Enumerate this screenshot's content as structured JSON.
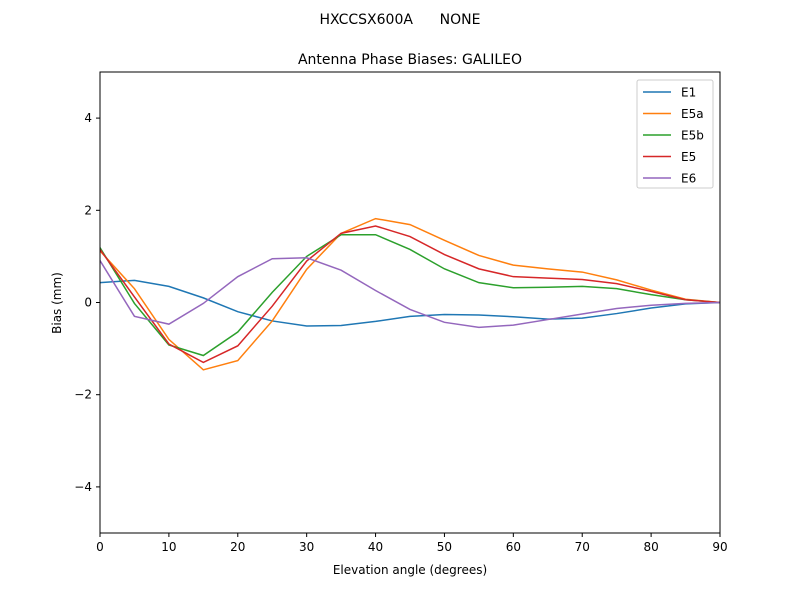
{
  "chart_data": {
    "type": "line",
    "suptitle": "HXCCSX600A      NONE",
    "title": "Antenna Phase Biases: GALILEO",
    "xlabel": "Elevation angle (degrees)",
    "ylabel": "Bias (mm)",
    "xlim": [
      0,
      90
    ],
    "ylim": [
      -5,
      5
    ],
    "xticks": [
      0,
      10,
      20,
      30,
      40,
      50,
      60,
      70,
      80,
      90
    ],
    "yticks": [
      -4,
      -2,
      0,
      2,
      4
    ],
    "ytick_labels": [
      "−4",
      "−2",
      "0",
      "2",
      "4"
    ],
    "grid": false,
    "legend_placement": "top-right",
    "x": [
      0,
      5,
      10,
      15,
      20,
      25,
      30,
      35,
      40,
      45,
      50,
      55,
      60,
      65,
      70,
      75,
      80,
      85,
      90
    ],
    "series": [
      {
        "name": "E1",
        "color": "#1f77b4",
        "values": [
          0.43,
          0.48,
          0.35,
          0.1,
          -0.2,
          -0.4,
          -0.51,
          -0.5,
          -0.41,
          -0.3,
          -0.26,
          -0.27,
          -0.31,
          -0.36,
          -0.34,
          -0.24,
          -0.12,
          -0.03,
          0
        ]
      },
      {
        "name": "E5a",
        "color": "#ff7f0e",
        "values": [
          1.12,
          0.3,
          -0.8,
          -1.46,
          -1.26,
          -0.4,
          0.72,
          1.5,
          1.82,
          1.69,
          1.35,
          1.02,
          0.81,
          0.73,
          0.66,
          0.49,
          0.27,
          0.07,
          0
        ]
      },
      {
        "name": "E5b",
        "color": "#2ca02c",
        "values": [
          1.19,
          -0.02,
          -0.92,
          -1.15,
          -0.64,
          0.22,
          1.0,
          1.47,
          1.47,
          1.15,
          0.73,
          0.43,
          0.32,
          0.33,
          0.35,
          0.3,
          0.17,
          0.06,
          0
        ]
      },
      {
        "name": "E5",
        "color": "#d62728",
        "values": [
          1.15,
          0.12,
          -0.9,
          -1.3,
          -0.94,
          -0.08,
          0.9,
          1.5,
          1.66,
          1.43,
          1.04,
          0.73,
          0.56,
          0.53,
          0.5,
          0.41,
          0.24,
          0.06,
          0
        ]
      },
      {
        "name": "E6",
        "color": "#9467bd",
        "values": [
          0.91,
          -0.3,
          -0.47,
          -0.02,
          0.56,
          0.95,
          0.97,
          0.7,
          0.26,
          -0.15,
          -0.43,
          -0.54,
          -0.49,
          -0.37,
          -0.25,
          -0.13,
          -0.06,
          -0.02,
          0
        ]
      }
    ]
  }
}
